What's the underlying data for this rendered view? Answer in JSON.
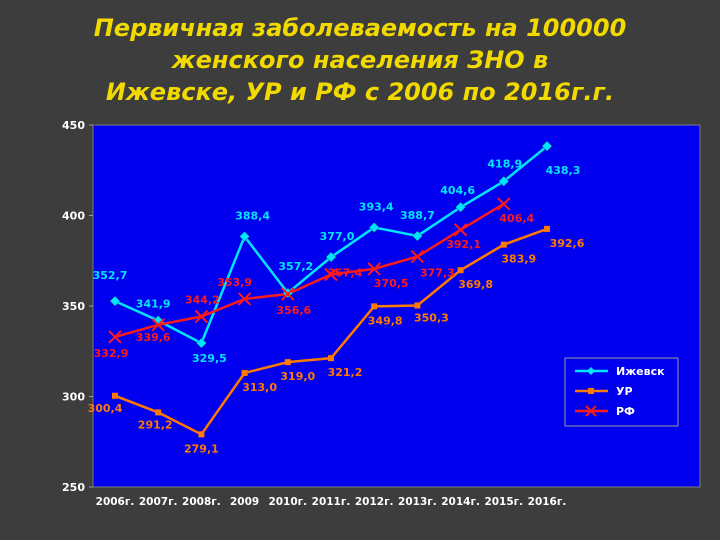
{
  "title": "Первичная заболеваемость на 100000\nженского населения ЗНО в\nИжевске, УР и РФ с 2006 по 2016г.г.",
  "chart_data": {
    "type": "line",
    "title": "Первичная заболеваемость на 100000 женского населения ЗНО в Ижевске, УР и РФ с 2006 по 2016г.г.",
    "categories": [
      "2006г.",
      "2007г.",
      "2008г.",
      "2009",
      "2010г.",
      "2011г.",
      "2012г.",
      "2013г.",
      "2014г.",
      "2015г.",
      "2016г."
    ],
    "ylim": [
      250,
      450
    ],
    "yticks": [
      "250",
      "300",
      "350",
      "400",
      "450"
    ],
    "grid": false,
    "legend": "bottom-right",
    "series": [
      {
        "name": "Ижевск",
        "color": "#00e5ff",
        "marker": "diamond",
        "values": [
          352.7,
          341.9,
          329.5,
          388.4,
          357.2,
          377.0,
          393.4,
          388.7,
          404.6,
          418.9,
          438.3
        ],
        "labels": [
          "352,7",
          "341,9",
          "329,5",
          "388,4",
          "357,2",
          "377,0",
          "393,4",
          "388,7",
          "404,6",
          "418,9",
          "438,3"
        ]
      },
      {
        "name": "УР",
        "color": "#ff7a00",
        "marker": "square",
        "values": [
          300.4,
          291.2,
          279.1,
          313.0,
          319.0,
          321.2,
          349.8,
          350.3,
          369.8,
          383.9,
          392.6
        ],
        "labels": [
          "300,4",
          "291,2",
          "279,1",
          "313,0",
          "319,0",
          "321,2",
          "349,8",
          "350,3",
          "369,8",
          "383,9",
          "392,6"
        ]
      },
      {
        "name": "РФ",
        "color": "#ff1a1a",
        "marker": "x",
        "values": [
          332.9,
          339.6,
          344.2,
          353.9,
          356.6,
          367.4,
          370.5,
          377.3,
          392.1,
          406.4,
          null
        ],
        "labels": [
          "332,9",
          "339,6",
          "344,2",
          "353,9",
          "356,6",
          "367,4",
          "370,5",
          "377,3",
          "392,1",
          "406,4",
          ""
        ]
      }
    ]
  }
}
